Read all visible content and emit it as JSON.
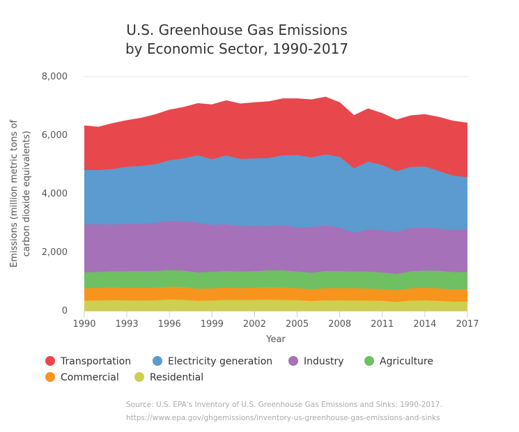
{
  "chart_data": {
    "type": "area",
    "stacked": true,
    "title_lines": [
      "U.S. Greenhouse Gas Emissions",
      "by Economic Sector, 1990-2017"
    ],
    "xlabel": "Year",
    "ylabel_lines": [
      "Emissions (million metric tons of",
      "carbon dioxide equivalents)"
    ],
    "xlim": [
      1990,
      2017
    ],
    "ylim": [
      0,
      8000
    ],
    "x_ticks": [
      1990,
      1993,
      1996,
      1999,
      2002,
      2005,
      2008,
      2011,
      2014,
      2017
    ],
    "y_ticks": [
      0,
      2000,
      4000,
      6000,
      8000
    ],
    "y_tick_labels": [
      "0",
      "2,000",
      "4,000",
      "6,000",
      "8,000"
    ],
    "x": [
      1990,
      1991,
      1992,
      1993,
      1994,
      1995,
      1996,
      1997,
      1998,
      1999,
      2000,
      2001,
      2002,
      2003,
      2004,
      2005,
      2006,
      2007,
      2008,
      2009,
      2010,
      2011,
      2012,
      2013,
      2014,
      2015,
      2016,
      2017
    ],
    "series": [
      {
        "name": "Residential",
        "color": "#cfcf4f",
        "values": [
          345,
          350,
          360,
          355,
          350,
          355,
          380,
          370,
          340,
          350,
          370,
          365,
          370,
          375,
          365,
          360,
          330,
          350,
          355,
          350,
          345,
          340,
          300,
          345,
          355,
          335,
          310,
          315
        ]
      },
      {
        "name": "Commercial",
        "color": "#f7941d",
        "values": [
          425,
          435,
          435,
          430,
          435,
          435,
          440,
          440,
          410,
          415,
          420,
          410,
          420,
          435,
          430,
          415,
          405,
          420,
          420,
          420,
          410,
          400,
          400,
          420,
          430,
          430,
          420,
          420
        ]
      },
      {
        "name": "Agriculture",
        "color": "#6fbf63",
        "values": [
          545,
          540,
          550,
          560,
          570,
          570,
          570,
          560,
          560,
          565,
          565,
          560,
          560,
          570,
          585,
          565,
          565,
          585,
          575,
          570,
          585,
          570,
          560,
          580,
          590,
          600,
          590,
          590
        ]
      },
      {
        "name": "Industry",
        "color": "#a571b8",
        "values": [
          1635,
          1630,
          1600,
          1625,
          1620,
          1640,
          1680,
          1690,
          1700,
          1610,
          1600,
          1555,
          1545,
          1510,
          1550,
          1510,
          1560,
          1560,
          1490,
          1330,
          1435,
          1440,
          1430,
          1480,
          1465,
          1450,
          1430,
          1460
        ]
      },
      {
        "name": "Electricity generation",
        "color": "#5b9bcf",
        "values": [
          1860,
          1850,
          1900,
          1950,
          1970,
          2010,
          2070,
          2150,
          2300,
          2240,
          2350,
          2300,
          2310,
          2330,
          2380,
          2470,
          2380,
          2430,
          2420,
          2200,
          2320,
          2230,
          2080,
          2090,
          2090,
          1960,
          1870,
          1780
        ]
      },
      {
        "name": "Transportation",
        "color": "#e8474c",
        "values": [
          1510,
          1470,
          1555,
          1580,
          1635,
          1690,
          1720,
          1740,
          1770,
          1860,
          1875,
          1880,
          1905,
          1925,
          1935,
          1925,
          1970,
          1955,
          1850,
          1800,
          1805,
          1760,
          1750,
          1750,
          1775,
          1835,
          1860,
          1850
        ]
      }
    ],
    "legend_order": [
      "Transportation",
      "Electricity generation",
      "Industry",
      "Agriculture",
      "Commercial",
      "Residential"
    ],
    "legend_position": "bottom",
    "grid": true
  },
  "source": {
    "line1": "Source: U.S. EPA's Inventory of U.S. Greenhouse Gas Emissions and Sinks: 1990-2017.",
    "line2": "https://www.epa.gov/ghgemissions/inventory-us-greenhouse-gas-emissions-and-sinks"
  }
}
